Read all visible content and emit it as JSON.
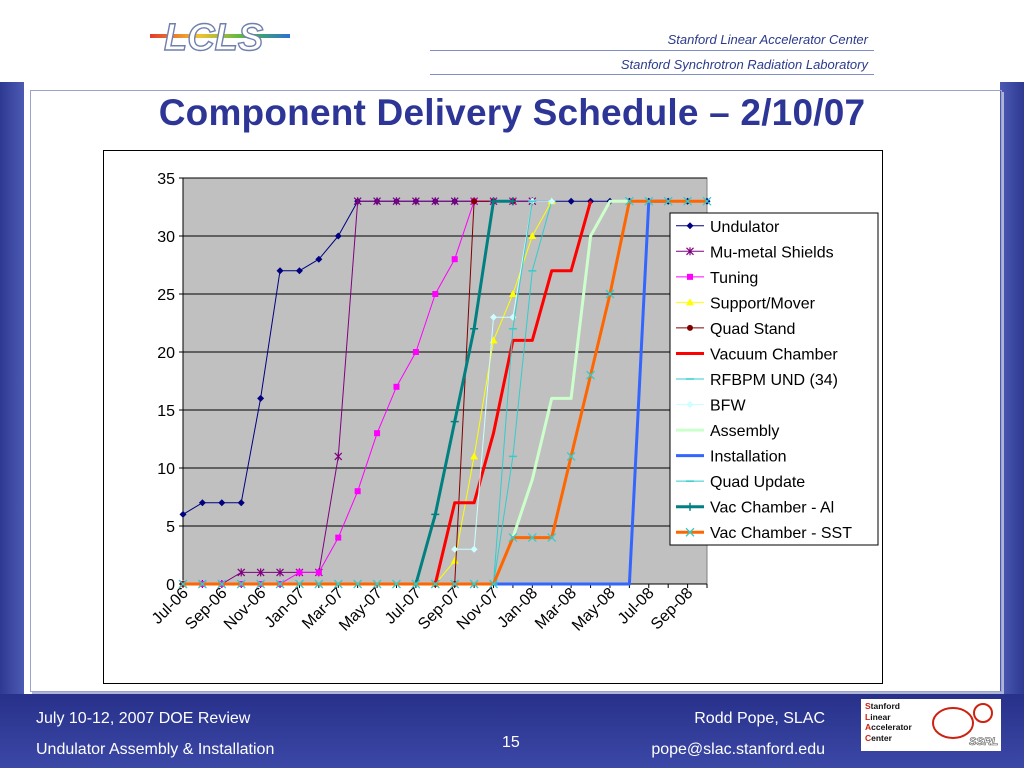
{
  "header": {
    "logo_text": "LCLS",
    "org_line_1": "Stanford Linear Accelerator Center",
    "org_line_2": "Stanford Synchrotron Radiation Laboratory"
  },
  "title": "Component Delivery Schedule – 2/10/07",
  "footer": {
    "left_top": "July 10-12, 2007 DOE Review",
    "left_bottom": "Undulator Assembly & Installation",
    "page_number": "15",
    "right_top": "Rodd Pope, SLAC",
    "right_bottom": "pope@slac.stanford.edu",
    "slac_logo_lines": [
      "Stanford",
      "Linear",
      "Accelerator",
      "Center"
    ],
    "ssrl_logo_text": "SSRL"
  },
  "colors": {
    "accent": "#2d3596",
    "plot_bg": "#c0c0c0",
    "footer_bg": "#2e3a91"
  },
  "chart_data": {
    "type": "line",
    "title": "",
    "xlabel": "",
    "ylabel": "",
    "ylim": [
      0,
      35
    ],
    "yticks": [
      0,
      5,
      10,
      15,
      20,
      25,
      30,
      35
    ],
    "xlim": [
      "2006-07",
      "2008-10"
    ],
    "xtick_labels": [
      "Jul-06",
      "Sep-06",
      "Nov-06",
      "Jan-07",
      "Mar-07",
      "May-07",
      "Jul-07",
      "Sep-07",
      "Nov-07",
      "Jan-08",
      "Mar-08",
      "May-08",
      "Jul-08",
      "Sep-08"
    ],
    "grid": "horizontal",
    "legend_position": "right",
    "series": [
      {
        "name": "Undulator",
        "color": "#000080",
        "marker": "diamond",
        "width": 1,
        "x": [
          "2006-07",
          "2006-08",
          "2006-09",
          "2006-10",
          "2006-11",
          "2006-12",
          "2007-01",
          "2007-02",
          "2007-03",
          "2007-04",
          "2007-05",
          "2007-06",
          "2007-07",
          "2007-08",
          "2007-09",
          "2007-10",
          "2007-11",
          "2007-12",
          "2008-01",
          "2008-02",
          "2008-03",
          "2008-04",
          "2008-05",
          "2008-06",
          "2008-07",
          "2008-08",
          "2008-09",
          "2008-10"
        ],
        "y": [
          6,
          7,
          7,
          7,
          16,
          27,
          27,
          28,
          30,
          33,
          33,
          33,
          33,
          33,
          33,
          33,
          33,
          33,
          33,
          33,
          33,
          33,
          33,
          33,
          33,
          33,
          33,
          33
        ]
      },
      {
        "name": "Mu-metal Shields",
        "color": "#800080",
        "marker": "star",
        "width": 1,
        "x": [
          "2006-07",
          "2006-08",
          "2006-09",
          "2006-10",
          "2006-11",
          "2006-12",
          "2007-01",
          "2007-02",
          "2007-03",
          "2007-04",
          "2007-05",
          "2007-06",
          "2007-07",
          "2007-08",
          "2007-09",
          "2007-10",
          "2007-11",
          "2007-12",
          "2008-01"
        ],
        "y": [
          0,
          0,
          0,
          1,
          1,
          1,
          1,
          1,
          11,
          33,
          33,
          33,
          33,
          33,
          33,
          33,
          33,
          33,
          33
        ]
      },
      {
        "name": "Tuning",
        "color": "#ff00ff",
        "marker": "square",
        "width": 1,
        "x": [
          "2006-07",
          "2006-08",
          "2006-09",
          "2006-10",
          "2006-11",
          "2006-12",
          "2007-01",
          "2007-02",
          "2007-03",
          "2007-04",
          "2007-05",
          "2007-06",
          "2007-07",
          "2007-08",
          "2007-09",
          "2007-10",
          "2007-11",
          "2007-12"
        ],
        "y": [
          0,
          0,
          0,
          0,
          0,
          0,
          1,
          1,
          4,
          8,
          13,
          17,
          20,
          25,
          28,
          33,
          33,
          33
        ]
      },
      {
        "name": "Support/Mover",
        "color": "#ffff00",
        "marker": "triangle",
        "width": 1,
        "x": [
          "2006-07",
          "2007-08",
          "2007-09",
          "2007-10",
          "2007-11",
          "2007-12",
          "2008-01",
          "2008-02"
        ],
        "y": [
          0,
          0,
          2,
          11,
          21,
          25,
          30,
          33
        ]
      },
      {
        "name": "Quad Stand",
        "color": "#800000",
        "marker": "circle",
        "width": 1,
        "x": [
          "2006-07",
          "2007-08",
          "2007-09",
          "2007-10",
          "2007-11",
          "2007-12"
        ],
        "y": [
          0,
          0,
          0,
          33,
          33,
          33
        ]
      },
      {
        "name": "Vacuum Chamber",
        "color": "#ff0000",
        "marker": "none",
        "width": 3,
        "x": [
          "2007-08",
          "2007-09",
          "2007-10",
          "2007-11",
          "2007-12",
          "2008-01",
          "2008-02",
          "2008-03",
          "2008-04"
        ],
        "y": [
          0,
          7,
          7,
          13,
          21,
          21,
          27,
          27,
          33
        ]
      },
      {
        "name": "RFBPM UND (34)",
        "color": "#33cccc",
        "marker": "dash",
        "width": 1,
        "x": [
          "2007-11",
          "2007-12",
          "2008-01",
          "2008-02"
        ],
        "y": [
          0,
          11,
          27,
          33
        ]
      },
      {
        "name": "BFW",
        "color": "#ccffff",
        "marker": "diamond",
        "width": 1,
        "x": [
          "2007-09",
          "2007-10",
          "2007-11",
          "2007-12",
          "2008-01",
          "2008-02"
        ],
        "y": [
          3,
          3,
          23,
          23,
          33,
          33
        ]
      },
      {
        "name": "Assembly",
        "color": "#ccffcc",
        "marker": "none",
        "width": 3,
        "x": [
          "2007-12",
          "2008-01",
          "2008-02",
          "2008-03",
          "2008-04",
          "2008-05",
          "2008-06"
        ],
        "y": [
          4,
          9,
          16,
          16,
          30,
          33,
          33
        ]
      },
      {
        "name": "Installation",
        "color": "#3366ff",
        "marker": "none",
        "width": 3,
        "x": [
          "2007-11",
          "2008-06",
          "2008-07",
          "2008-08"
        ],
        "y": [
          0,
          0,
          33,
          33
        ]
      },
      {
        "name": "Quad Update",
        "color": "#33cccc",
        "marker": "dash",
        "width": 1,
        "x": [
          "2007-10",
          "2007-11",
          "2007-12",
          "2008-01"
        ],
        "y": [
          0,
          0,
          22,
          33
        ]
      },
      {
        "name": "Vac Chamber - Al",
        "color": "#008080",
        "marker": "plus",
        "width": 3,
        "x": [
          "2007-07",
          "2007-08",
          "2007-09",
          "2007-10",
          "2007-11",
          "2007-12"
        ],
        "y": [
          0,
          6,
          14,
          22,
          33,
          33
        ]
      },
      {
        "name": "Vac Chamber - SST",
        "color": "#ff6600",
        "marker": "x",
        "width": 3,
        "x": [
          "2006-07",
          "2006-08",
          "2006-09",
          "2006-10",
          "2006-11",
          "2006-12",
          "2007-01",
          "2007-02",
          "2007-03",
          "2007-04",
          "2007-05",
          "2007-06",
          "2007-07",
          "2007-08",
          "2007-09",
          "2007-10",
          "2007-11",
          "2007-12",
          "2008-01",
          "2008-02",
          "2008-03",
          "2008-04",
          "2008-05",
          "2008-06",
          "2008-07",
          "2008-08",
          "2008-09",
          "2008-10"
        ],
        "y": [
          0,
          0,
          0,
          0,
          0,
          0,
          0,
          0,
          0,
          0,
          0,
          0,
          0,
          0,
          0,
          0,
          0,
          4,
          4,
          4,
          11,
          18,
          25,
          33,
          33,
          33,
          33,
          33
        ]
      }
    ]
  }
}
